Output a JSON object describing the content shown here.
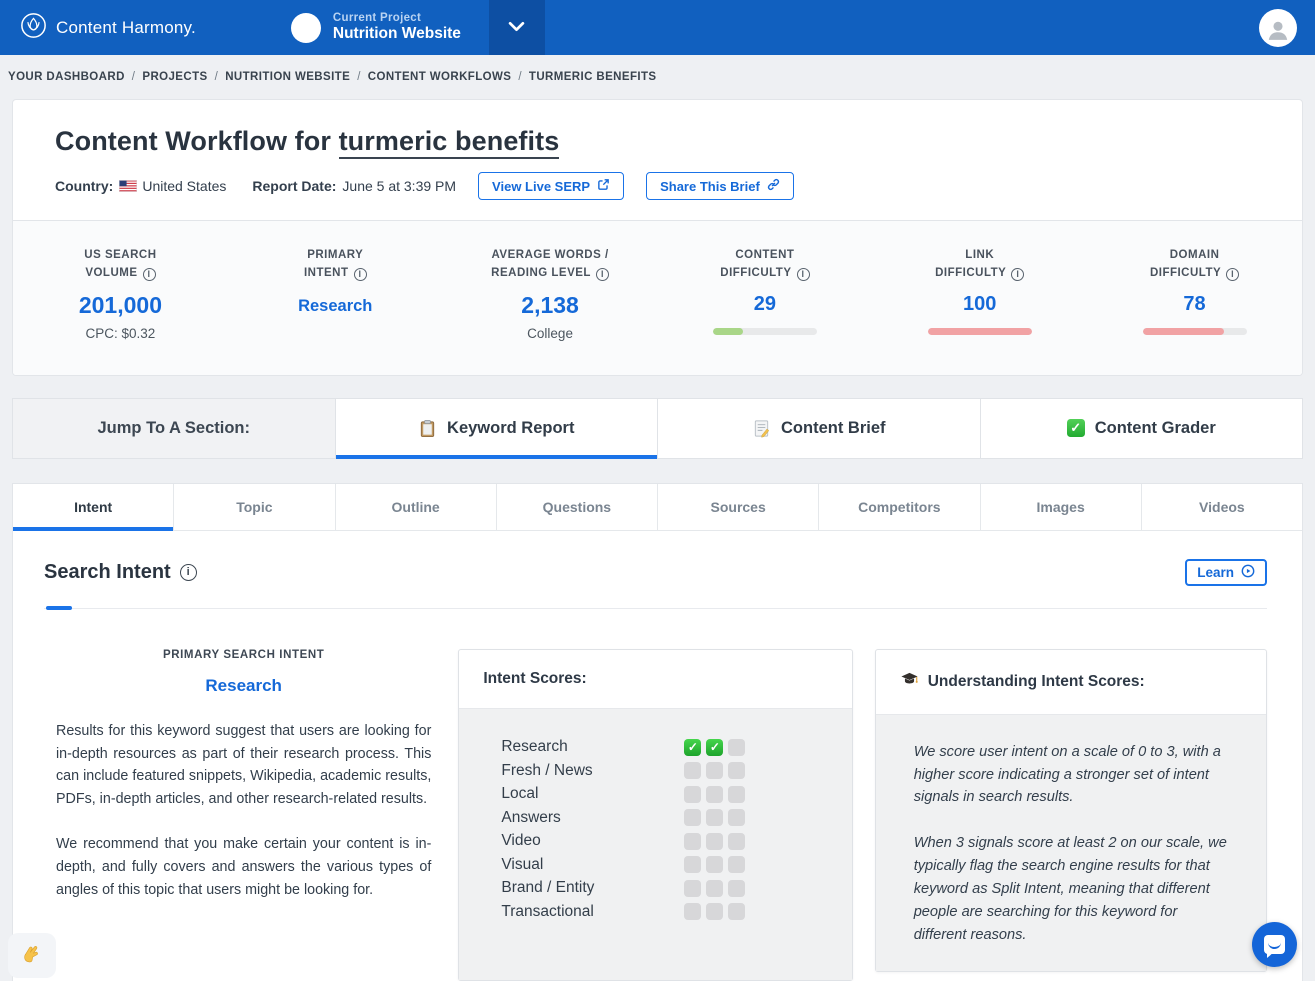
{
  "navbar": {
    "brand": "Content Harmony.",
    "project": {
      "label": "Current Project",
      "name": "Nutrition Website"
    }
  },
  "breadcrumb": {
    "separator": "/",
    "items": [
      "YOUR DASHBOARD",
      "PROJECTS",
      "NUTRITION WEBSITE",
      "CONTENT WORKFLOWS",
      "TURMERIC BENEFITS"
    ]
  },
  "header": {
    "title_prefix": "Content Workflow for ",
    "title_keyword": "turmeric benefits",
    "country_label": "Country:",
    "country_value": "United States",
    "report_date_label": "Report Date:",
    "report_date_value": "June 5 at 3:39 PM",
    "view_serp_button": "View Live SERP",
    "share_button": "Share This Brief"
  },
  "stats": {
    "items": [
      {
        "id": "us-search-volume",
        "label_lines": [
          "US SEARCH",
          "VOLUME"
        ],
        "value": "201,000",
        "subtext": "CPC: $0.32"
      },
      {
        "id": "primary-intent",
        "label_lines": [
          "PRIMARY",
          "INTENT"
        ],
        "value": "Research"
      },
      {
        "id": "average-words-reading-level",
        "label_lines": [
          "AVERAGE WORDS /",
          "READING LEVEL"
        ],
        "value": "2,138",
        "subtext": "College"
      },
      {
        "id": "content-difficulty",
        "label_lines": [
          "CONTENT",
          "DIFFICULTY"
        ],
        "value": "29",
        "bar": {
          "percent": 29,
          "color": "#a9d688"
        }
      },
      {
        "id": "link-difficulty",
        "label_lines": [
          "LINK",
          "DIFFICULTY"
        ],
        "value": "100",
        "bar": {
          "percent": 100,
          "color": "#f1a2a4"
        }
      },
      {
        "id": "domain-difficulty",
        "label_lines": [
          "DOMAIN",
          "DIFFICULTY"
        ],
        "value": "78",
        "bar": {
          "percent": 78,
          "color": "#f1a2a4"
        }
      }
    ]
  },
  "jump": {
    "title": "Jump To A Section:",
    "items": [
      {
        "icon": "clipboard-icon",
        "label": "Keyword Report",
        "active": true
      },
      {
        "icon": "memo-icon",
        "label": "Content Brief",
        "active": false
      },
      {
        "icon": "green-check-icon",
        "label": "Content Grader",
        "active": false
      }
    ]
  },
  "tabs": {
    "items": [
      {
        "label": "Intent",
        "active": true
      },
      {
        "label": "Topic",
        "active": false
      },
      {
        "label": "Outline",
        "active": false
      },
      {
        "label": "Questions",
        "active": false
      },
      {
        "label": "Sources",
        "active": false
      },
      {
        "label": "Competitors",
        "active": false
      },
      {
        "label": "Images",
        "active": false
      },
      {
        "label": "Videos",
        "active": false
      }
    ]
  },
  "search_intent": {
    "heading": "Search Intent",
    "learn_button": "Learn",
    "primary": {
      "label": "PRIMARY SEARCH INTENT",
      "value": "Research",
      "paragraphs": [
        "Results for this keyword suggest that users are looking for in-depth resources as part of their research process. This can include featured snippets, Wikipedia, academic results, PDFs, in-depth articles, and other research-related results.",
        "We recommend that you make certain your content is in-depth, and fully covers and answers the various types of angles of this topic that users might be looking for."
      ]
    },
    "scores": {
      "title": "Intent Scores:",
      "max": 3,
      "rows": [
        {
          "label": "Research",
          "score": 2
        },
        {
          "label": "Fresh / News",
          "score": 0
        },
        {
          "label": "Local",
          "score": 0
        },
        {
          "label": "Answers",
          "score": 0
        },
        {
          "label": "Video",
          "score": 0
        },
        {
          "label": "Visual",
          "score": 0
        },
        {
          "label": "Brand / Entity",
          "score": 0
        },
        {
          "label": "Transactional",
          "score": 0
        }
      ]
    },
    "understanding": {
      "icon": "graduation-cap-icon",
      "title": "Understanding Intent Scores:",
      "paragraphs": [
        "We score user intent on a scale of 0 to 3, with a higher score indicating a stronger set of intent signals in search results.",
        "When 3 signals score at least 2 on our scale, we typically flag the search engine results for that keyword as Split Intent, meaning that different people are searching for this keyword for different reasons."
      ]
    }
  },
  "floating": {
    "corner_icon": "crossed-fingers-icon",
    "chat_icon": "chat-bubble-icon"
  },
  "glyphs": {
    "check": "✓",
    "info": "i"
  },
  "colors": {
    "navbar_blue": "#1160bf",
    "accent_blue": "#1569d8",
    "green_bar": "#a9d688",
    "red_bar": "#f1a2a4",
    "check_green": "#2ebf3f"
  }
}
